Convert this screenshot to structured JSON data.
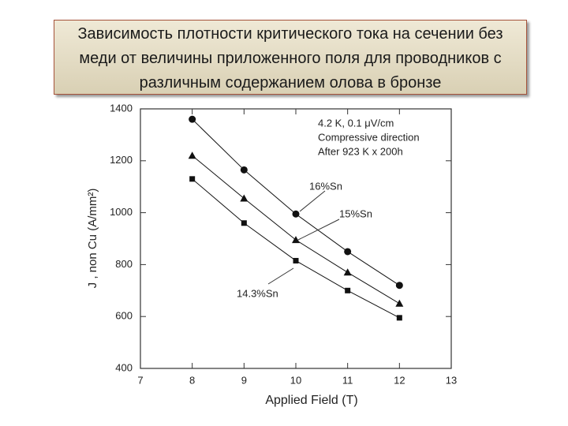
{
  "chart_data": {
    "type": "line",
    "title": "Зависимость плотности критического тока на сечении без меди от величины приложенного поля для проводников с различным содержанием олова в бронзе",
    "x_label": "Applied Field (T)",
    "y_label": "J , non Cu (A/mm²)",
    "annotations": [
      "4.2 K, 0.1 μV/cm",
      "Compressive direction",
      "After 923 K x 200h"
    ],
    "x": [
      8,
      9,
      10,
      11,
      12
    ],
    "series": [
      {
        "name": "16%Sn",
        "color": "#111111",
        "marker": "circle",
        "values": [
          1360,
          1165,
          995,
          850,
          720
        ]
      },
      {
        "name": "15%Sn",
        "color": "#111111",
        "marker": "triangle",
        "values": [
          1220,
          1055,
          895,
          770,
          650
        ]
      },
      {
        "name": "14.3%Sn",
        "color": "#111111",
        "marker": "square",
        "values": [
          1130,
          960,
          815,
          700,
          595
        ]
      }
    ],
    "xlim": [
      7,
      13
    ],
    "xticks": [
      7,
      8,
      9,
      10,
      11,
      12,
      13
    ],
    "ylim": [
      400,
      1400
    ],
    "yticks": [
      400,
      600,
      800,
      1000,
      1200,
      1400
    ],
    "grid": false
  }
}
